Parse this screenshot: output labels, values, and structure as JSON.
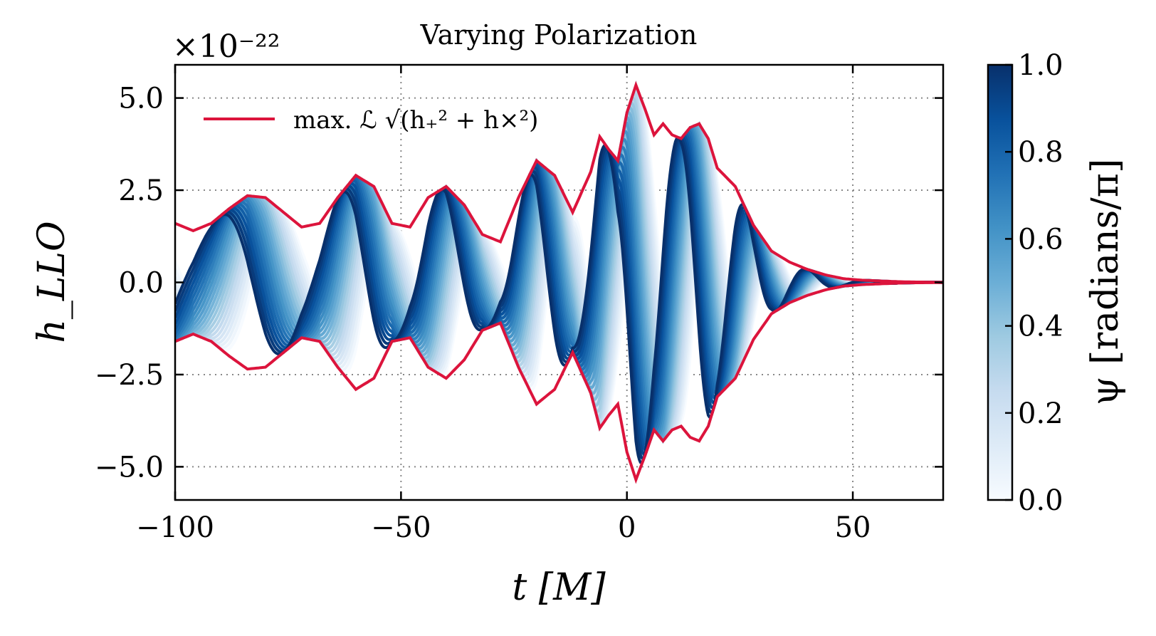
{
  "chart_data": {
    "type": "line",
    "title": "Varying Polarization",
    "offset_label": "×10⁻²²",
    "xlabel": "t [M]",
    "ylabel": "h_LLO",
    "xlim": [
      -100,
      70
    ],
    "ylim": [
      -5.9,
      5.9
    ],
    "xticks": [
      -100,
      -50,
      0,
      50
    ],
    "xtick_labels": [
      "−100",
      "−50",
      "0",
      "50"
    ],
    "yticks": [
      5.0,
      2.5,
      0.0,
      -2.5,
      -5.0
    ],
    "ytick_labels": [
      "5.0",
      "2.5",
      "0.0",
      "−2.5",
      "−5.0"
    ],
    "grid": true,
    "legend": {
      "position": "top-left",
      "entries": [
        {
          "label": "max. ℒ √(h₊² + h×²)",
          "color": "#dc143c"
        }
      ]
    },
    "envelope_series": {
      "name": "max. ℒ √(h₊² + h×²)",
      "color": "#dc143c",
      "x": [
        -100,
        -96,
        -92,
        -88,
        -84,
        -80,
        -76,
        -72,
        -68,
        -64,
        -60,
        -56,
        -52,
        -48,
        -44,
        -40,
        -36,
        -32,
        -28,
        -24,
        -20,
        -16,
        -12,
        -8,
        -6,
        -4,
        -2,
        0,
        2,
        4,
        6,
        8,
        10,
        12,
        14,
        16,
        18,
        20,
        24,
        28,
        32,
        36,
        40,
        44,
        48,
        52,
        56,
        60,
        64,
        70
      ],
      "y": [
        1.6,
        1.4,
        1.6,
        2.0,
        2.35,
        2.3,
        1.9,
        1.5,
        1.6,
        2.3,
        2.9,
        2.6,
        1.6,
        1.5,
        2.3,
        2.6,
        2.1,
        1.3,
        1.1,
        2.3,
        3.3,
        2.9,
        1.9,
        3.0,
        3.95,
        3.6,
        3.3,
        4.6,
        5.35,
        4.7,
        4.0,
        4.3,
        4.0,
        3.9,
        4.2,
        4.3,
        3.9,
        3.1,
        2.6,
        1.55,
        0.85,
        0.55,
        0.35,
        0.2,
        0.1,
        0.06,
        0.04,
        0.02,
        0.01,
        0.005
      ]
    },
    "polarization_series": {
      "count": 24,
      "parameter": "ψ",
      "range": [
        0.0,
        1.0
      ],
      "colormap": "Blues",
      "frequency_law": "phase(t) = 0.188·(t+100) + 0.0010·(t+100)²",
      "phase_offset_per_psi": 6.2832
    },
    "colorbar": {
      "label": "ψ [radians/π]",
      "ticks": [
        0.0,
        0.2,
        0.4,
        0.6,
        0.8,
        1.0
      ],
      "tick_labels": [
        "0.0",
        "0.2",
        "0.4",
        "0.6",
        "0.8",
        "1.0"
      ],
      "colors": [
        "#f7fbff",
        "#deebf7",
        "#c6dbef",
        "#9ecae1",
        "#6baed6",
        "#4292c6",
        "#2171b5",
        "#08519c",
        "#08306b"
      ]
    }
  }
}
